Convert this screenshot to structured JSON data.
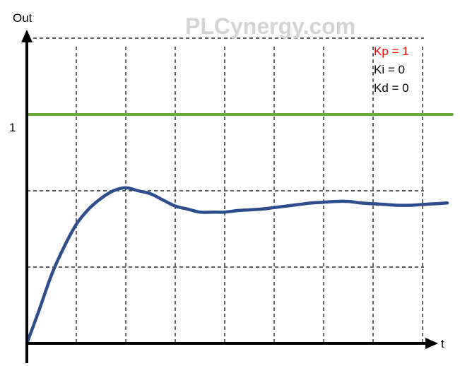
{
  "watermark": "PLCynergy.com",
  "chart_data": {
    "type": "line",
    "title": "",
    "xlabel": "t",
    "ylabel": "Out",
    "xlim": [
      0,
      8.6
    ],
    "ylim": [
      0,
      2.25
    ],
    "grid": true,
    "x_gridlines": [
      1,
      2,
      3,
      4,
      5,
      6,
      7,
      8
    ],
    "y_gridlines": [
      0.5,
      1.0,
      1.5,
      2.0
    ],
    "y_tick_labels": [
      {
        "value": 1.5,
        "label": "1"
      }
    ],
    "legend": [
      {
        "text": "Kp = 1",
        "color": "#ff0000"
      },
      {
        "text": "Ki = 0",
        "color": "#000000"
      },
      {
        "text": "Kd = 0",
        "color": "#000000"
      }
    ],
    "series": [
      {
        "name": "setpoint",
        "color": "#6aaa3a",
        "x": [
          0,
          8.6
        ],
        "y": [
          1.5,
          1.5
        ]
      },
      {
        "name": "output",
        "color": "#2e4d8c",
        "x": [
          0,
          0.25,
          0.5,
          0.75,
          1.0,
          1.25,
          1.5,
          1.75,
          2.0,
          2.25,
          2.5,
          2.75,
          3.0,
          3.25,
          3.5,
          3.75,
          4.0,
          4.25,
          4.5,
          4.75,
          5.0,
          5.25,
          5.5,
          5.75,
          6.0,
          6.25,
          6.5,
          6.75,
          7.0,
          7.25,
          7.5,
          7.75,
          8.0,
          8.25,
          8.5
        ],
        "y": [
          0,
          0.22,
          0.45,
          0.63,
          0.78,
          0.88,
          0.95,
          1.0,
          1.02,
          1.0,
          0.98,
          0.94,
          0.9,
          0.88,
          0.86,
          0.86,
          0.86,
          0.87,
          0.875,
          0.88,
          0.89,
          0.9,
          0.91,
          0.92,
          0.925,
          0.93,
          0.93,
          0.92,
          0.915,
          0.91,
          0.905,
          0.905,
          0.91,
          0.915,
          0.92
        ]
      }
    ]
  }
}
